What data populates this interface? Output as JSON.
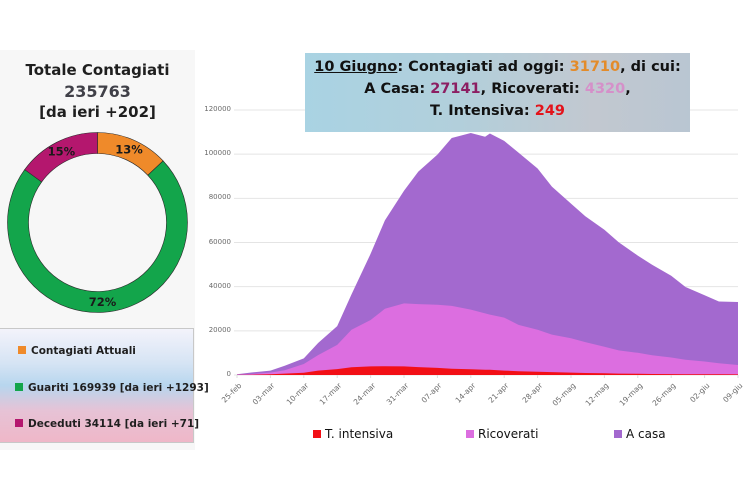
{
  "summary": {
    "title": "Totale Contagiati",
    "total": "235763",
    "delta": "[da ieri +202]"
  },
  "donut": {
    "slices": [
      {
        "name": "Contagiati Attuali",
        "percent": 13,
        "label": "13%",
        "color": "#ef8a2a"
      },
      {
        "name": "Guariti",
        "percent": 72,
        "label": "72%",
        "color": "#13a54b"
      },
      {
        "name": "Deceduti",
        "percent": 15,
        "label": "15%",
        "color": "#b4176e"
      }
    ]
  },
  "legend": {
    "items": [
      {
        "label": "Contagiati Attuali",
        "color": "#ef8a2a"
      },
      {
        "label": "Guariti 169939 [da ieri +1293]",
        "color": "#13a54b"
      },
      {
        "label": "Deceduti 34114 [da ieri +71]",
        "color": "#b4176e"
      }
    ]
  },
  "banner": {
    "date": "10 Giugno",
    "line1_text": ": Contagiati ad oggi: ",
    "current": "31710",
    "line1_end": ", di cui:",
    "home_label": "A Casa: ",
    "home": "27141",
    "hosp_label": ", Ricoverati: ",
    "hosp": "4320",
    "hosp_end": ",",
    "icu_label": "T. Intensiva: ",
    "icu": "249"
  },
  "chart_data": {
    "type": "area",
    "stacked": true,
    "title": "",
    "xlabel": "",
    "ylabel": "",
    "ylim": [
      0,
      120000
    ],
    "yticks": [
      "0",
      "20000",
      "40000",
      "60000",
      "80000",
      "100000",
      "120000"
    ],
    "xticks": [
      "25-feb",
      "03-mar",
      "10-mar",
      "17-mar",
      "24-mar",
      "31-mar",
      "07-apr",
      "14-apr",
      "21-apr",
      "28-apr",
      "05-mag",
      "12-mag",
      "19-mag",
      "26-mag",
      "02-giu",
      "09-giu"
    ],
    "x_days": [
      0,
      3,
      7,
      10,
      14,
      17,
      21,
      24,
      28,
      31,
      35,
      38,
      42,
      45,
      49,
      52,
      53,
      56,
      59,
      63,
      66,
      70,
      73,
      77,
      80,
      84,
      87,
      91,
      94,
      98,
      101,
      105
    ],
    "series": [
      {
        "name": "T. intensiva",
        "color": "#f20f16",
        "values": [
          30,
          150,
          300,
          650,
          1000,
          2000,
          2650,
          3500,
          3900,
          4000,
          3900,
          3600,
          3200,
          2800,
          2600,
          2400,
          2350,
          2000,
          1700,
          1500,
          1300,
          1100,
          900,
          750,
          650,
          550,
          450,
          420,
          370,
          330,
          300,
          250
        ]
      },
      {
        "name": "Ricoverati",
        "color": "#dc6ee0",
        "values": [
          100,
          280,
          800,
          1500,
          4000,
          7000,
          11000,
          17000,
          21000,
          26000,
          28500,
          28500,
          28600,
          28500,
          27000,
          25500,
          25000,
          24000,
          21000,
          19000,
          17000,
          15500,
          14000,
          12000,
          10500,
          9500,
          8500,
          7500,
          6500,
          5800,
          5000,
          4300
        ]
      },
      {
        "name": "A casa",
        "color": "#a369cf",
        "values": [
          200,
          700,
          900,
          2000,
          2500,
          5500,
          8500,
          16000,
          30000,
          40000,
          51000,
          60000,
          68000,
          76000,
          80000,
          80000,
          82000,
          80000,
          78000,
          73000,
          67000,
          61000,
          57000,
          53000,
          49000,
          44000,
          41000,
          37000,
          33000,
          30000,
          28000,
          28500
        ]
      }
    ]
  },
  "chart_legend": [
    {
      "label": "T. intensiva",
      "color": "#f20f16"
    },
    {
      "label": "Ricoverati",
      "color": "#dc6ee0"
    },
    {
      "label": "A casa",
      "color": "#a369cf"
    }
  ]
}
